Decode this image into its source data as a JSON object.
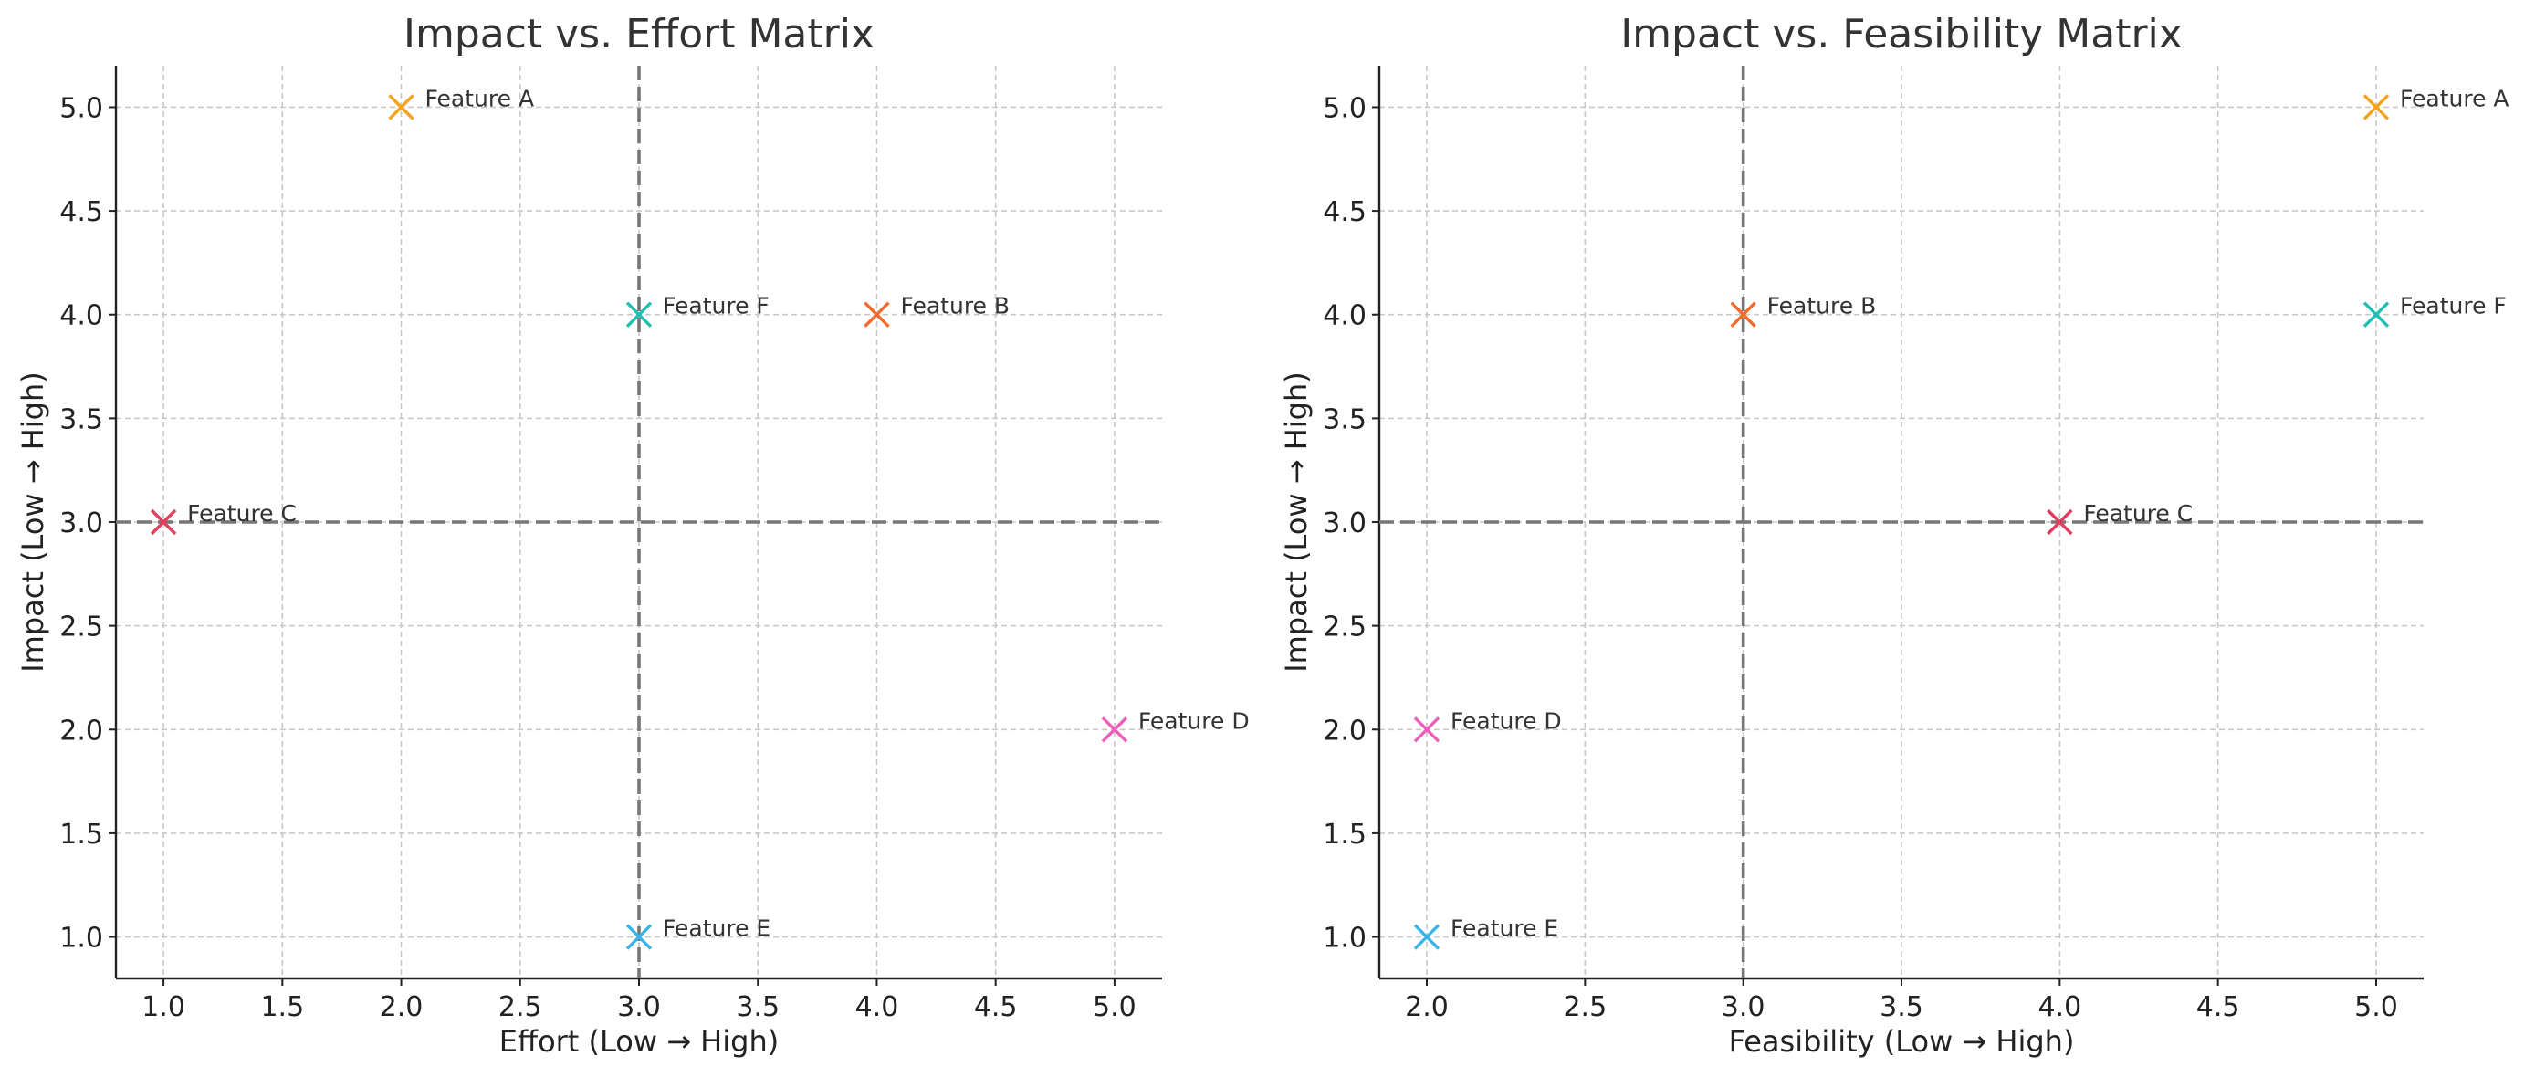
{
  "chart_data": [
    {
      "type": "scatter",
      "title": "Impact vs. Effort Matrix",
      "xlabel": "Effort (Low → High)",
      "ylabel": "Impact (Low → High)",
      "xlim": [
        0.8,
        5.2
      ],
      "ylim": [
        0.8,
        5.2
      ],
      "xticks": [
        "1.0",
        "1.5",
        "2.0",
        "2.5",
        "3.0",
        "3.5",
        "4.0",
        "4.5",
        "5.0"
      ],
      "yticks": [
        "1.0",
        "1.5",
        "2.0",
        "2.5",
        "3.0",
        "3.5",
        "4.0",
        "4.5",
        "5.0"
      ],
      "grid": true,
      "reference_lines": {
        "x": 3.0,
        "y": 3.0
      },
      "points": [
        {
          "label": "Feature A",
          "x": 2,
          "y": 5,
          "color": "#f5a31a"
        },
        {
          "label": "Feature B",
          "x": 4,
          "y": 4,
          "color": "#f26b2a"
        },
        {
          "label": "Feature C",
          "x": 1,
          "y": 3,
          "color": "#e0405e"
        },
        {
          "label": "Feature D",
          "x": 5,
          "y": 2,
          "color": "#ee5db8"
        },
        {
          "label": "Feature E",
          "x": 3,
          "y": 1,
          "color": "#3bb4ea"
        },
        {
          "label": "Feature F",
          "x": 3,
          "y": 4,
          "color": "#1dbfb3"
        }
      ]
    },
    {
      "type": "scatter",
      "title": "Impact vs. Feasibility Matrix",
      "xlabel": "Feasibility (Low → High)",
      "ylabel": "Impact (Low → High)",
      "xlim": [
        1.85,
        5.15
      ],
      "ylim": [
        0.8,
        5.2
      ],
      "xticks": [
        "2.0",
        "2.5",
        "3.0",
        "3.5",
        "4.0",
        "4.5",
        "5.0"
      ],
      "yticks": [
        "1.0",
        "1.5",
        "2.0",
        "2.5",
        "3.0",
        "3.5",
        "4.0",
        "4.5",
        "5.0"
      ],
      "grid": true,
      "reference_lines": {
        "x": 3.0,
        "y": 3.0
      },
      "points": [
        {
          "label": "Feature A",
          "x": 5,
          "y": 5,
          "color": "#f5a31a"
        },
        {
          "label": "Feature B",
          "x": 3,
          "y": 4,
          "color": "#f26b2a"
        },
        {
          "label": "Feature C",
          "x": 4,
          "y": 3,
          "color": "#e0405e"
        },
        {
          "label": "Feature D",
          "x": 2,
          "y": 2,
          "color": "#ee5db8"
        },
        {
          "label": "Feature E",
          "x": 2,
          "y": 1,
          "color": "#3bb4ea"
        },
        {
          "label": "Feature F",
          "x": 5,
          "y": 4,
          "color": "#1dbfb3"
        }
      ]
    }
  ]
}
